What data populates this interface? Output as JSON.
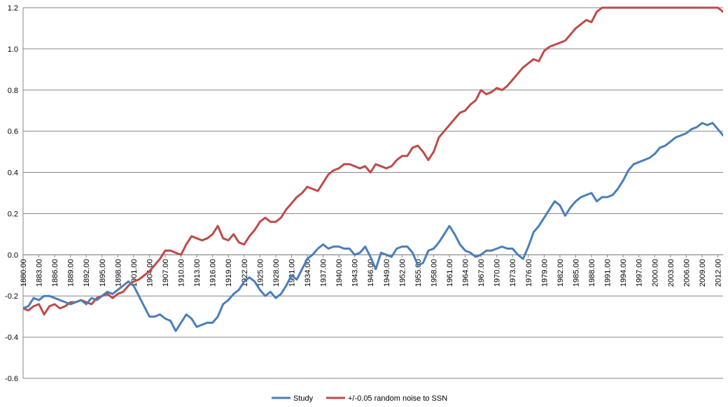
{
  "chart_data": {
    "type": "line",
    "title": "",
    "xlabel": "",
    "ylabel": "",
    "ylim": [
      -0.6,
      1.2
    ],
    "yticks": [
      "1.2",
      "1.0",
      "0.8",
      "0.6",
      "0.4",
      "0.2",
      "0.0",
      "-0.2",
      "-0.4",
      "-0.6"
    ],
    "xlim": [
      1880,
      2013
    ],
    "xtick_labels": [
      "1880.00",
      "1883.00",
      "1886.00",
      "1889.00",
      "1892.00",
      "1895.00",
      "1898.00",
      "1901.00",
      "1904.00",
      "1907.00",
      "1910.00",
      "1913.00",
      "1916.00",
      "1919.00",
      "1922.00",
      "1925.00",
      "1928.00",
      "1931.00",
      "1934.00",
      "1937.00",
      "1940.00",
      "1943.00",
      "1946.00",
      "1949.00",
      "1952.00",
      "1955.00",
      "1958.00",
      "1961.00",
      "1964.00",
      "1967.00",
      "1970.00",
      "1973.00",
      "1976.00",
      "1979.00",
      "1982.00",
      "1985.00",
      "1988.00",
      "1991.00",
      "1994.00",
      "1997.00",
      "2000.00",
      "2003.00",
      "2006.00",
      "2009.00",
      "2012.00"
    ],
    "grid": true,
    "legend_position": "bottom",
    "series": [
      {
        "name": "Study",
        "color": "#4a7ebb",
        "x": [
          1880,
          1881,
          1882,
          1883,
          1884,
          1885,
          1886,
          1887,
          1888,
          1889,
          1890,
          1891,
          1892,
          1893,
          1894,
          1895,
          1896,
          1897,
          1898,
          1899,
          1900,
          1901,
          1902,
          1903,
          1904,
          1905,
          1906,
          1907,
          1908,
          1909,
          1910,
          1911,
          1912,
          1913,
          1914,
          1915,
          1916,
          1917,
          1918,
          1919,
          1920,
          1921,
          1922,
          1923,
          1924,
          1925,
          1926,
          1927,
          1928,
          1929,
          1930,
          1931,
          1932,
          1933,
          1934,
          1935,
          1936,
          1937,
          1938,
          1939,
          1940,
          1941,
          1942,
          1943,
          1944,
          1945,
          1946,
          1947,
          1948,
          1949,
          1950,
          1951,
          1952,
          1953,
          1954,
          1955,
          1956,
          1957,
          1958,
          1959,
          1960,
          1961,
          1962,
          1963,
          1964,
          1965,
          1966,
          1967,
          1968,
          1969,
          1970,
          1971,
          1972,
          1973,
          1974,
          1975,
          1976,
          1977,
          1978,
          1979,
          1980,
          1981,
          1982,
          1983,
          1984,
          1985,
          1986,
          1987,
          1988,
          1989,
          1990,
          1991,
          1992,
          1993,
          1994,
          1995,
          1996,
          1997,
          1998,
          1999,
          2000,
          2001,
          2002,
          2003,
          2004,
          2005,
          2006,
          2007,
          2008,
          2009,
          2010,
          2011,
          2012,
          2013
        ],
        "values": [
          -0.26,
          -0.25,
          -0.21,
          -0.22,
          -0.2,
          -0.2,
          -0.21,
          -0.22,
          -0.23,
          -0.24,
          -0.23,
          -0.22,
          -0.24,
          -0.21,
          -0.22,
          -0.2,
          -0.18,
          -0.19,
          -0.17,
          -0.15,
          -0.13,
          -0.15,
          -0.2,
          -0.25,
          -0.3,
          -0.3,
          -0.29,
          -0.31,
          -0.32,
          -0.37,
          -0.33,
          -0.29,
          -0.31,
          -0.35,
          -0.34,
          -0.33,
          -0.33,
          -0.3,
          -0.24,
          -0.22,
          -0.19,
          -0.17,
          -0.13,
          -0.11,
          -0.13,
          -0.17,
          -0.2,
          -0.18,
          -0.21,
          -0.19,
          -0.15,
          -0.1,
          -0.12,
          -0.07,
          -0.02,
          0.0,
          0.03,
          0.05,
          0.03,
          0.04,
          0.04,
          0.03,
          0.03,
          0.0,
          0.01,
          0.04,
          -0.01,
          -0.07,
          0.01,
          0.0,
          -0.01,
          0.03,
          0.04,
          0.04,
          0.01,
          -0.05,
          -0.04,
          0.02,
          0.03,
          0.06,
          0.1,
          0.14,
          0.1,
          0.05,
          0.02,
          0.01,
          -0.01,
          0.0,
          0.02,
          0.02,
          0.03,
          0.04,
          0.03,
          0.03,
          0.0,
          -0.02,
          0.04,
          0.11,
          0.14,
          0.18,
          0.22,
          0.26,
          0.24,
          0.19,
          0.23,
          0.26,
          0.28,
          0.29,
          0.3,
          0.26,
          0.28,
          0.28,
          0.29,
          0.32,
          0.36,
          0.41,
          0.44,
          0.45,
          0.46,
          0.47,
          0.49,
          0.52,
          0.53,
          0.55,
          0.57,
          0.58,
          0.59,
          0.61,
          0.62,
          0.64,
          0.63,
          0.64,
          0.61,
          0.58
        ]
      },
      {
        "name": "+/-0.05 random noise to SSN",
        "color": "#be4b48",
        "x": [
          1880,
          1881,
          1882,
          1883,
          1884,
          1885,
          1886,
          1887,
          1888,
          1889,
          1890,
          1891,
          1892,
          1893,
          1894,
          1895,
          1896,
          1897,
          1898,
          1899,
          1900,
          1901,
          1902,
          1903,
          1904,
          1905,
          1906,
          1907,
          1908,
          1909,
          1910,
          1911,
          1912,
          1913,
          1914,
          1915,
          1916,
          1917,
          1918,
          1919,
          1920,
          1921,
          1922,
          1923,
          1924,
          1925,
          1926,
          1927,
          1928,
          1929,
          1930,
          1931,
          1932,
          1933,
          1934,
          1935,
          1936,
          1937,
          1938,
          1939,
          1940,
          1941,
          1942,
          1943,
          1944,
          1945,
          1946,
          1947,
          1948,
          1949,
          1950,
          1951,
          1952,
          1953,
          1954,
          1955,
          1956,
          1957,
          1958,
          1959,
          1960,
          1961,
          1962,
          1963,
          1964,
          1965,
          1966,
          1967,
          1968,
          1969,
          1970,
          1971,
          1972,
          1973,
          1974,
          1975,
          1976,
          1977,
          1978,
          1979,
          1980,
          1981,
          1982,
          1983,
          1984,
          1985,
          1986,
          1987,
          1988,
          1989,
          1990,
          1991,
          1992,
          1993,
          1994,
          1995,
          1996,
          1997,
          1998,
          1999,
          2000,
          2001,
          2002,
          2003,
          2004,
          2005,
          2006,
          2007,
          2008,
          2009,
          2010,
          2011,
          2012,
          2013
        ],
        "values": [
          -0.26,
          -0.27,
          -0.25,
          -0.24,
          -0.29,
          -0.25,
          -0.24,
          -0.26,
          -0.25,
          -0.23,
          -0.23,
          -0.22,
          -0.23,
          -0.24,
          -0.21,
          -0.2,
          -0.19,
          -0.21,
          -0.19,
          -0.18,
          -0.15,
          -0.13,
          -0.12,
          -0.1,
          -0.08,
          -0.05,
          -0.02,
          0.02,
          0.02,
          0.01,
          0.0,
          0.05,
          0.09,
          0.08,
          0.07,
          0.08,
          0.1,
          0.14,
          0.08,
          0.07,
          0.1,
          0.06,
          0.05,
          0.09,
          0.12,
          0.16,
          0.18,
          0.16,
          0.16,
          0.18,
          0.22,
          0.25,
          0.28,
          0.3,
          0.33,
          0.32,
          0.31,
          0.35,
          0.39,
          0.41,
          0.42,
          0.44,
          0.44,
          0.43,
          0.42,
          0.43,
          0.4,
          0.44,
          0.43,
          0.42,
          0.43,
          0.46,
          0.48,
          0.48,
          0.52,
          0.53,
          0.5,
          0.46,
          0.5,
          0.57,
          0.6,
          0.63,
          0.66,
          0.69,
          0.7,
          0.73,
          0.75,
          0.8,
          0.78,
          0.79,
          0.81,
          0.8,
          0.82,
          0.85,
          0.88,
          0.91,
          0.93,
          0.95,
          0.94,
          0.99,
          1.01,
          1.02,
          1.03,
          1.04,
          1.07,
          1.1,
          1.12,
          1.14,
          1.13,
          1.18,
          1.2,
          1.2,
          1.2,
          1.2,
          1.2,
          1.2,
          1.2,
          1.2,
          1.2,
          1.2,
          1.2,
          1.2,
          1.2,
          1.2,
          1.2,
          1.2,
          1.2,
          1.2,
          1.2,
          1.2,
          1.2,
          1.2,
          1.2,
          1.18
        ]
      }
    ]
  }
}
